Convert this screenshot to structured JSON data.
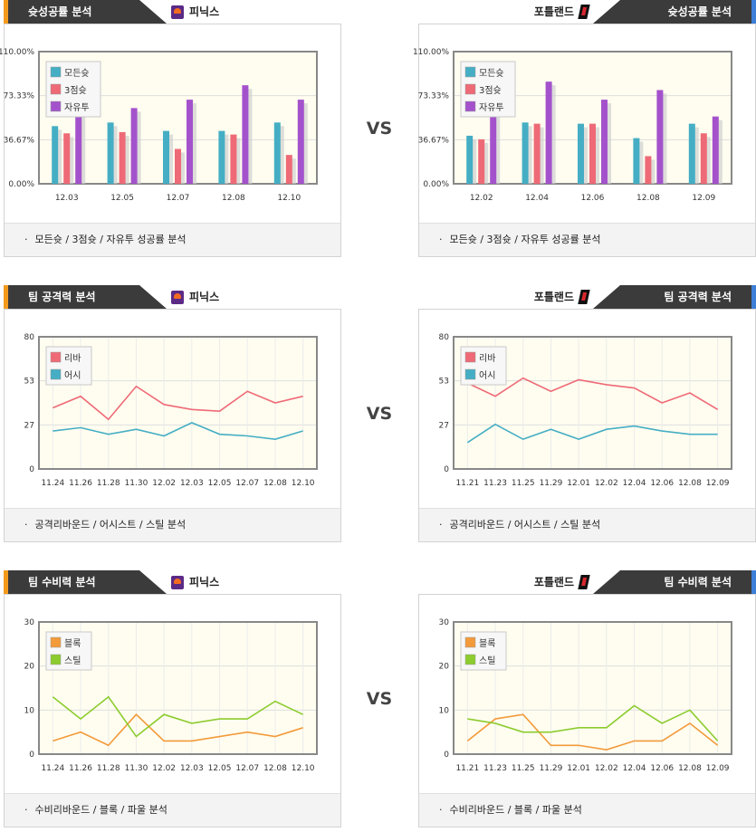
{
  "vs_label": "VS",
  "sections": [
    {
      "title": "슛성공률 분석",
      "footer": "모든슛 / 3점슛 / 자유투 성공률 분석",
      "left": {
        "team": "피닉스",
        "chart_data": {
          "type": "bar",
          "categories": [
            "12.03",
            "12.05",
            "12.07",
            "12.08",
            "12.10"
          ],
          "series": [
            {
              "name": "모든슛",
              "color": "#45aec4",
              "values": [
                48,
                51,
                44,
                44,
                51
              ]
            },
            {
              "name": "3점슛",
              "color": "#ee6a76",
              "values": [
                42,
                43,
                29,
                41,
                24
              ]
            },
            {
              "name": "자유투",
              "color": "#a452cc",
              "values": [
                62,
                63,
                70,
                82,
                70
              ]
            }
          ],
          "ylim": [
            0,
            110
          ],
          "yticks": [
            "0.00%",
            "36.67%",
            "73.33%",
            "110.00%"
          ],
          "ytick_values": [
            0,
            36.67,
            73.33,
            110
          ],
          "legend": "top-left"
        }
      },
      "right": {
        "team": "포틀랜드",
        "chart_data": {
          "type": "bar",
          "categories": [
            "12.02",
            "12.04",
            "12.06",
            "12.08",
            "12.09"
          ],
          "series": [
            {
              "name": "모든슛",
              "color": "#45aec4",
              "values": [
                40,
                51,
                50,
                38,
                50
              ]
            },
            {
              "name": "3점슛",
              "color": "#ee6a76",
              "values": [
                37,
                50,
                50,
                23,
                42
              ]
            },
            {
              "name": "자유투",
              "color": "#a452cc",
              "values": [
                62,
                85,
                70,
                78,
                56
              ]
            }
          ],
          "ylim": [
            0,
            110
          ],
          "yticks": [
            "0.00%",
            "36.67%",
            "73.33%",
            "110.00%"
          ],
          "ytick_values": [
            0,
            36.67,
            73.33,
            110
          ],
          "legend": "top-left"
        }
      }
    },
    {
      "title": "팀 공격력 분석",
      "footer": "공격리바운드 / 어시스트 / 스틸 분석",
      "left": {
        "team": "피닉스",
        "chart_data": {
          "type": "line",
          "categories": [
            "11.24",
            "11.26",
            "11.28",
            "11.30",
            "12.02",
            "12.03",
            "12.05",
            "12.07",
            "12.08",
            "12.10"
          ],
          "series": [
            {
              "name": "리바",
              "color": "#ee6a76",
              "values": [
                37,
                44,
                30,
                50,
                39,
                36,
                35,
                47,
                40,
                44
              ]
            },
            {
              "name": "어시",
              "color": "#45aec4",
              "values": [
                23,
                25,
                21,
                24,
                20,
                28,
                21,
                20,
                18,
                23
              ]
            }
          ],
          "ylim": [
            0,
            80
          ],
          "yticks": [
            "0",
            "27",
            "53",
            "80"
          ],
          "ytick_values": [
            0,
            26.67,
            53.33,
            80
          ],
          "legend": "top-left"
        }
      },
      "right": {
        "team": "포틀랜드",
        "chart_data": {
          "type": "line",
          "categories": [
            "11.21",
            "11.23",
            "11.25",
            "11.29",
            "12.01",
            "12.02",
            "12.04",
            "12.06",
            "12.08",
            "12.09"
          ],
          "series": [
            {
              "name": "리바",
              "color": "#ee6a76",
              "values": [
                52,
                44,
                55,
                47,
                54,
                51,
                49,
                40,
                46,
                36
              ]
            },
            {
              "name": "어시",
              "color": "#45aec4",
              "values": [
                16,
                27,
                18,
                24,
                18,
                24,
                26,
                23,
                21,
                21
              ]
            }
          ],
          "ylim": [
            0,
            80
          ],
          "yticks": [
            "0",
            "27",
            "53",
            "80"
          ],
          "ytick_values": [
            0,
            26.67,
            53.33,
            80
          ],
          "legend": "top-left"
        }
      }
    },
    {
      "title": "팀 수비력 분석",
      "footer": "수비리바운드 / 블록 / 파울 분석",
      "left": {
        "team": "피닉스",
        "chart_data": {
          "type": "line",
          "categories": [
            "11.24",
            "11.26",
            "11.28",
            "11.30",
            "12.02",
            "12.03",
            "12.05",
            "12.07",
            "12.08",
            "12.10"
          ],
          "series": [
            {
              "name": "블록",
              "color": "#f39a3a",
              "values": [
                3,
                5,
                2,
                9,
                3,
                3,
                4,
                5,
                4,
                6
              ]
            },
            {
              "name": "스틸",
              "color": "#8ccc2e",
              "values": [
                13,
                8,
                13,
                4,
                9,
                7,
                8,
                8,
                12,
                9
              ]
            }
          ],
          "ylim": [
            0,
            30
          ],
          "yticks": [
            "0",
            "10",
            "20",
            "30"
          ],
          "ytick_values": [
            0,
            10,
            20,
            30
          ],
          "legend": "top-left"
        }
      },
      "right": {
        "team": "포틀랜드",
        "chart_data": {
          "type": "line",
          "categories": [
            "11.21",
            "11.23",
            "11.25",
            "11.29",
            "12.01",
            "12.02",
            "12.04",
            "12.06",
            "12.08",
            "12.09"
          ],
          "series": [
            {
              "name": "블록",
              "color": "#f39a3a",
              "values": [
                3,
                8,
                9,
                2,
                2,
                1,
                3,
                3,
                7,
                2
              ]
            },
            {
              "name": "스틸",
              "color": "#8ccc2e",
              "values": [
                8,
                7,
                5,
                5,
                6,
                6,
                11,
                7,
                10,
                3
              ]
            }
          ],
          "ylim": [
            0,
            30
          ],
          "yticks": [
            "0",
            "10",
            "20",
            "30"
          ],
          "ytick_values": [
            0,
            10,
            20,
            30
          ],
          "legend": "top-left"
        }
      }
    }
  ]
}
